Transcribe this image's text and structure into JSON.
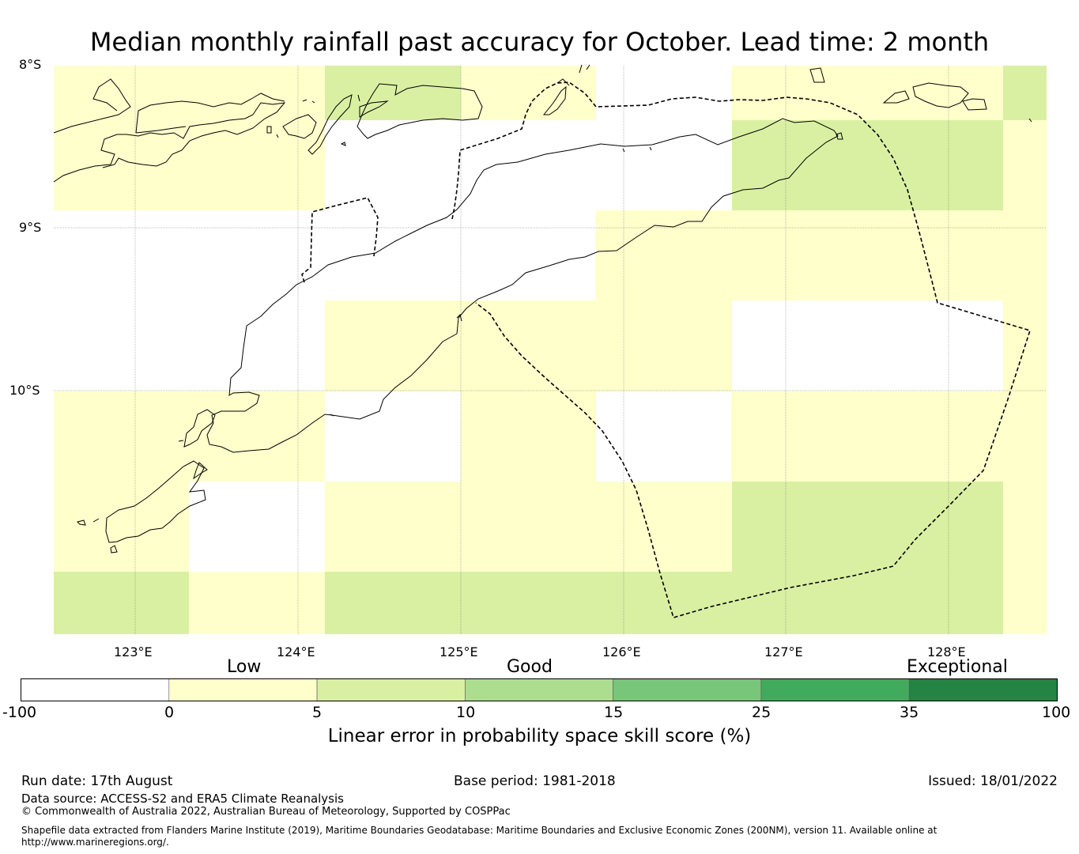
{
  "title": "Median monthly rainfall past accuracy for October. Lead time: 2 month",
  "map": {
    "lat_labels": [
      "8°S",
      "9°S",
      "10°S"
    ],
    "lon_labels": [
      "123°E",
      "124°E",
      "125°E",
      "126°E",
      "127°E",
      "128°E"
    ],
    "colors": {
      "none": "#ffffff",
      "c0_5": "#ffffcc",
      "c5_10": "#d9f0a3",
      "c10_15": "#addd8e",
      "c15_25": "#78c679",
      "c25_35": "#41ab5d",
      "c35_100": "#238443"
    }
  },
  "colorbar": {
    "categories": [
      "Low",
      "Good",
      "Exceptional"
    ],
    "ticks": [
      "-100",
      "0",
      "5",
      "10",
      "15",
      "25",
      "35",
      "100"
    ],
    "colors": [
      "#ffffff",
      "#ffffcc",
      "#d9f0a3",
      "#addd8e",
      "#78c679",
      "#41ab5d",
      "#238443"
    ],
    "label": "Linear error in probability space skill score (%)"
  },
  "footer": {
    "run_date": "Run date: 17th August",
    "base_period": "Base period: 1981-2018",
    "issued": "Issued: 18/01/2022",
    "data_source": "Data source: ACCESS-S2 and ERA5 Climate Reanalysis",
    "copyright": "© Commonwealth of Australia 2022, Australian Bureau of Meteorology, Supported by COSPPac",
    "shapefile_line1": "Shapefile data extracted from Flanders Marine Institute (2019), Maritime Boundaries Geodatabase: Maritime Boundaries and Exclusive Economic Zones (200NM), version 11. Available online at",
    "shapefile_line2": "http://www.marineregions.org/."
  }
}
